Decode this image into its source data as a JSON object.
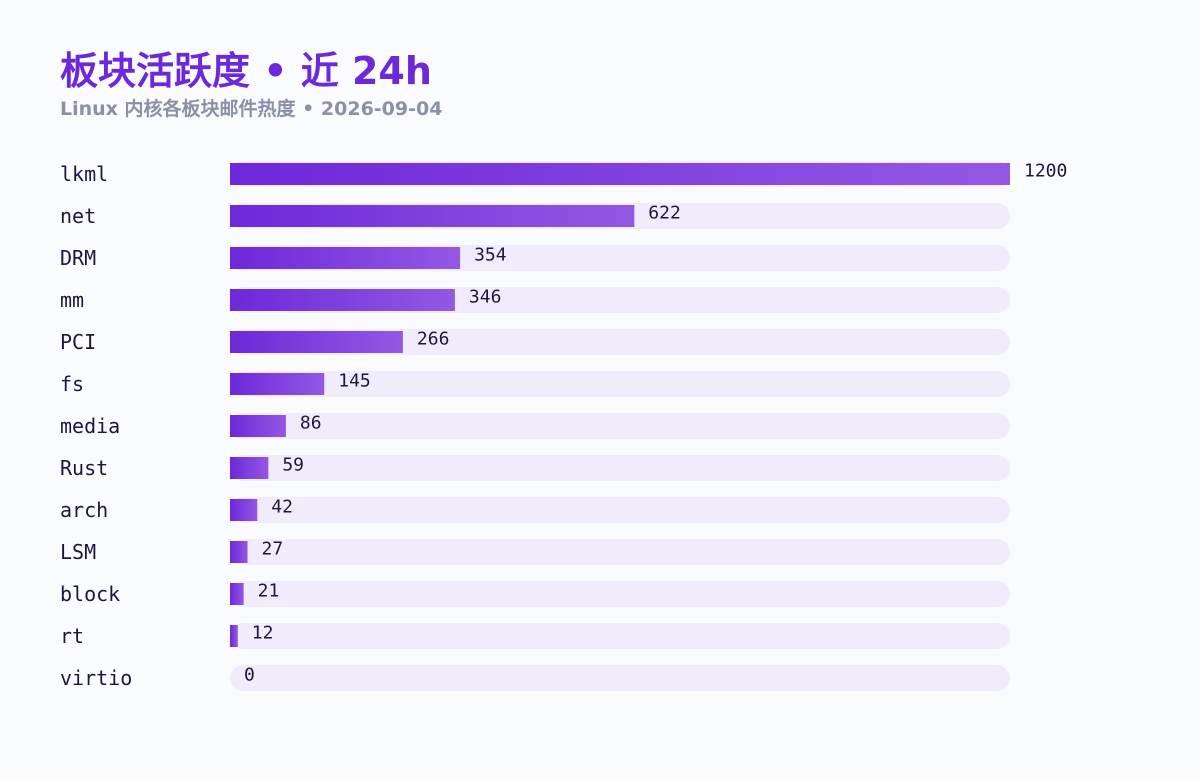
{
  "header": {
    "title": "板块活跃度 • 近 24h",
    "subtitle": "Linux 内核各板块邮件热度 • 2026-09-04"
  },
  "colors": {
    "title": "#6d28d9",
    "subtitle": "#8a90a6",
    "bar_start": "#6d28d9",
    "bar_end": "#9458e3",
    "track": "#f1ecfc",
    "text": "#1f1640"
  },
  "chart_data": {
    "type": "bar",
    "orientation": "horizontal",
    "title": "板块活跃度 • 近 24h",
    "subtitle": "Linux 内核各板块邮件热度 • 2026-09-04",
    "categories": [
      "lkml",
      "net",
      "DRM",
      "mm",
      "PCI",
      "fs",
      "media",
      "Rust",
      "arch",
      "LSM",
      "block",
      "rt",
      "virtio"
    ],
    "values": [
      1200,
      622,
      354,
      346,
      266,
      145,
      86,
      59,
      42,
      27,
      21,
      12,
      0
    ],
    "xlim": [
      0,
      1200
    ],
    "grid": false,
    "legend": "none"
  }
}
